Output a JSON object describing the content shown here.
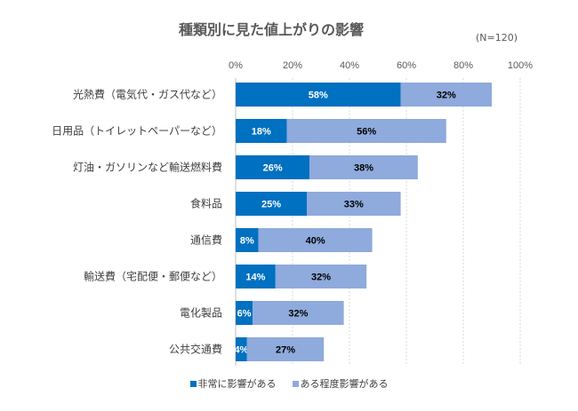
{
  "chart_data": {
    "type": "bar",
    "orientation": "horizontal",
    "stacked": true,
    "title": "種類別に見た値上がりの影響",
    "annotation": "(N=120)",
    "xlabel": "",
    "ylabel": "",
    "xlim": [
      0,
      100
    ],
    "x_ticks": [
      "0%",
      "20%",
      "40%",
      "60%",
      "80%",
      "100%"
    ],
    "x_tick_values": [
      0,
      20,
      40,
      60,
      80,
      100
    ],
    "grid": "vertical-dotted",
    "legend_position": "bottom",
    "categories": [
      "光熱費（電気代・ガス代など）",
      "日用品（トイレットペーパーなど）",
      "灯油・ガソリンなど輸送燃料費",
      "食料品",
      "通信費",
      "輸送費（宅配便・郵便など）",
      "電化製品",
      "公共交通費"
    ],
    "series": [
      {
        "name": "非常に影響がある",
        "color": "#0070C0",
        "label_color": "#FFFFFF",
        "values": [
          58,
          18,
          26,
          25,
          8,
          14,
          6,
          4
        ],
        "labels": [
          "58%",
          "18%",
          "26%",
          "25%",
          "8%",
          "14%",
          "6%",
          "4%"
        ]
      },
      {
        "name": "ある程度影響がある",
        "color": "#8FAADC",
        "label_color": "#000000",
        "values": [
          32,
          56,
          38,
          33,
          40,
          32,
          32,
          27
        ],
        "labels": [
          "32%",
          "56%",
          "38%",
          "33%",
          "40%",
          "32%",
          "32%",
          "27%"
        ]
      }
    ]
  }
}
